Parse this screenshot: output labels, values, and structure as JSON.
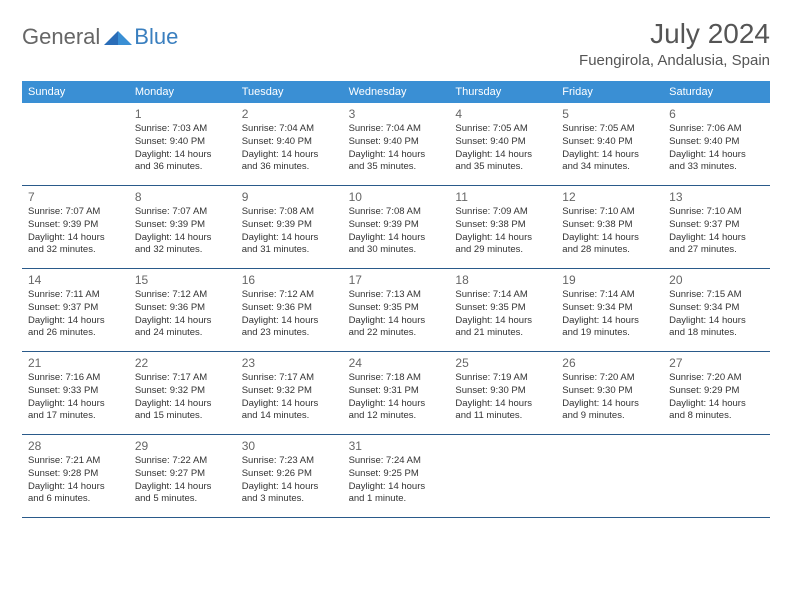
{
  "brand": {
    "part1": "General",
    "part2": "Blue"
  },
  "title": "July 2024",
  "location": "Fuengirola, Andalusia, Spain",
  "colors": {
    "header_bg": "#3a8fd4",
    "header_text": "#ffffff",
    "divider": "#2a5a8a",
    "title_color": "#555555",
    "text_color": "#333333",
    "logo_gray": "#666666",
    "logo_blue": "#3a7fbf",
    "background": "#ffffff"
  },
  "weekdays": [
    "Sunday",
    "Monday",
    "Tuesday",
    "Wednesday",
    "Thursday",
    "Friday",
    "Saturday"
  ],
  "weeks": [
    [
      null,
      {
        "n": "1",
        "sunrise": "7:03 AM",
        "sunset": "9:40 PM",
        "daylight": "14 hours and 36 minutes."
      },
      {
        "n": "2",
        "sunrise": "7:04 AM",
        "sunset": "9:40 PM",
        "daylight": "14 hours and 36 minutes."
      },
      {
        "n": "3",
        "sunrise": "7:04 AM",
        "sunset": "9:40 PM",
        "daylight": "14 hours and 35 minutes."
      },
      {
        "n": "4",
        "sunrise": "7:05 AM",
        "sunset": "9:40 PM",
        "daylight": "14 hours and 35 minutes."
      },
      {
        "n": "5",
        "sunrise": "7:05 AM",
        "sunset": "9:40 PM",
        "daylight": "14 hours and 34 minutes."
      },
      {
        "n": "6",
        "sunrise": "7:06 AM",
        "sunset": "9:40 PM",
        "daylight": "14 hours and 33 minutes."
      }
    ],
    [
      {
        "n": "7",
        "sunrise": "7:07 AM",
        "sunset": "9:39 PM",
        "daylight": "14 hours and 32 minutes."
      },
      {
        "n": "8",
        "sunrise": "7:07 AM",
        "sunset": "9:39 PM",
        "daylight": "14 hours and 32 minutes."
      },
      {
        "n": "9",
        "sunrise": "7:08 AM",
        "sunset": "9:39 PM",
        "daylight": "14 hours and 31 minutes."
      },
      {
        "n": "10",
        "sunrise": "7:08 AM",
        "sunset": "9:39 PM",
        "daylight": "14 hours and 30 minutes."
      },
      {
        "n": "11",
        "sunrise": "7:09 AM",
        "sunset": "9:38 PM",
        "daylight": "14 hours and 29 minutes."
      },
      {
        "n": "12",
        "sunrise": "7:10 AM",
        "sunset": "9:38 PM",
        "daylight": "14 hours and 28 minutes."
      },
      {
        "n": "13",
        "sunrise": "7:10 AM",
        "sunset": "9:37 PM",
        "daylight": "14 hours and 27 minutes."
      }
    ],
    [
      {
        "n": "14",
        "sunrise": "7:11 AM",
        "sunset": "9:37 PM",
        "daylight": "14 hours and 26 minutes."
      },
      {
        "n": "15",
        "sunrise": "7:12 AM",
        "sunset": "9:36 PM",
        "daylight": "14 hours and 24 minutes."
      },
      {
        "n": "16",
        "sunrise": "7:12 AM",
        "sunset": "9:36 PM",
        "daylight": "14 hours and 23 minutes."
      },
      {
        "n": "17",
        "sunrise": "7:13 AM",
        "sunset": "9:35 PM",
        "daylight": "14 hours and 22 minutes."
      },
      {
        "n": "18",
        "sunrise": "7:14 AM",
        "sunset": "9:35 PM",
        "daylight": "14 hours and 21 minutes."
      },
      {
        "n": "19",
        "sunrise": "7:14 AM",
        "sunset": "9:34 PM",
        "daylight": "14 hours and 19 minutes."
      },
      {
        "n": "20",
        "sunrise": "7:15 AM",
        "sunset": "9:34 PM",
        "daylight": "14 hours and 18 minutes."
      }
    ],
    [
      {
        "n": "21",
        "sunrise": "7:16 AM",
        "sunset": "9:33 PM",
        "daylight": "14 hours and 17 minutes."
      },
      {
        "n": "22",
        "sunrise": "7:17 AM",
        "sunset": "9:32 PM",
        "daylight": "14 hours and 15 minutes."
      },
      {
        "n": "23",
        "sunrise": "7:17 AM",
        "sunset": "9:32 PM",
        "daylight": "14 hours and 14 minutes."
      },
      {
        "n": "24",
        "sunrise": "7:18 AM",
        "sunset": "9:31 PM",
        "daylight": "14 hours and 12 minutes."
      },
      {
        "n": "25",
        "sunrise": "7:19 AM",
        "sunset": "9:30 PM",
        "daylight": "14 hours and 11 minutes."
      },
      {
        "n": "26",
        "sunrise": "7:20 AM",
        "sunset": "9:30 PM",
        "daylight": "14 hours and 9 minutes."
      },
      {
        "n": "27",
        "sunrise": "7:20 AM",
        "sunset": "9:29 PM",
        "daylight": "14 hours and 8 minutes."
      }
    ],
    [
      {
        "n": "28",
        "sunrise": "7:21 AM",
        "sunset": "9:28 PM",
        "daylight": "14 hours and 6 minutes."
      },
      {
        "n": "29",
        "sunrise": "7:22 AM",
        "sunset": "9:27 PM",
        "daylight": "14 hours and 5 minutes."
      },
      {
        "n": "30",
        "sunrise": "7:23 AM",
        "sunset": "9:26 PM",
        "daylight": "14 hours and 3 minutes."
      },
      {
        "n": "31",
        "sunrise": "7:24 AM",
        "sunset": "9:25 PM",
        "daylight": "14 hours and 1 minute."
      },
      null,
      null,
      null
    ]
  ],
  "labels": {
    "sunrise": "Sunrise:",
    "sunset": "Sunset:",
    "daylight": "Daylight:"
  }
}
